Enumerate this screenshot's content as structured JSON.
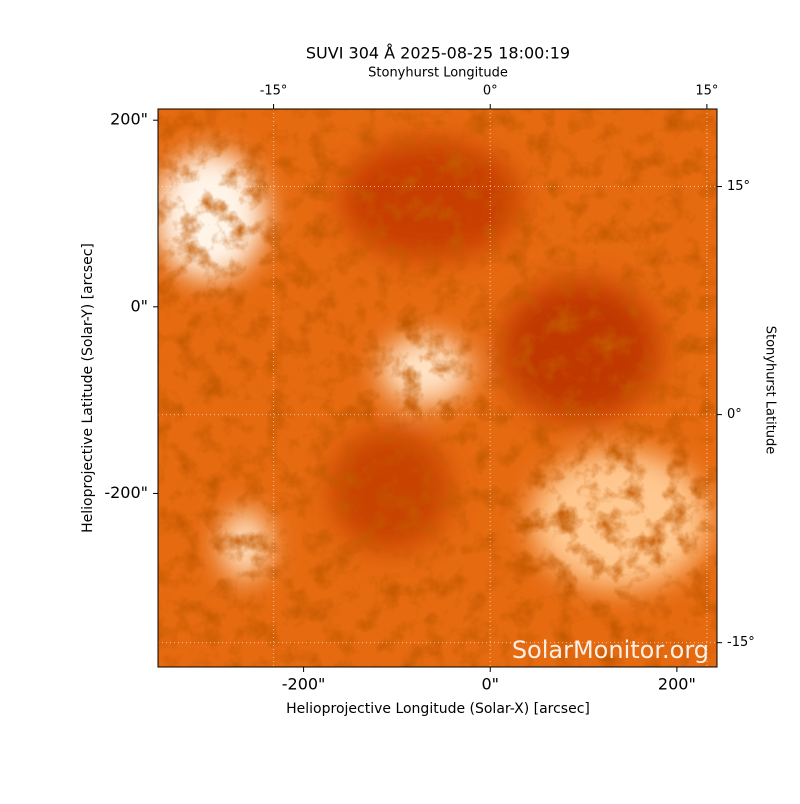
{
  "chart_data": {
    "type": "image",
    "title": "SUVI 304 Å 2025-08-25 18:00:19",
    "xlabel": "Helioprojective Longitude (Solar-X) [arcsec]",
    "ylabel": "Helioprojective Latitude (Solar-Y) [arcsec]",
    "x2label": "Stonyhurst Longitude",
    "y2label": "Stonyhurst Latitude",
    "watermark": "SolarMonitor.org",
    "xlim": [
      -356,
      243
    ],
    "ylim": [
      -386,
      212
    ],
    "xticks": [
      {
        "value": -200,
        "label": "-200\""
      },
      {
        "value": 0,
        "label": "0\""
      },
      {
        "value": 200,
        "label": "200\""
      }
    ],
    "yticks": [
      {
        "value": -200,
        "label": "-200\""
      },
      {
        "value": 0,
        "label": "0\""
      },
      {
        "value": 200,
        "label": "200\""
      }
    ],
    "x2lim": [
      -23,
      15.7
    ],
    "x2ticks": [
      {
        "value": -15,
        "label": "-15°"
      },
      {
        "value": 0,
        "label": "0°"
      },
      {
        "value": 15,
        "label": "15°"
      }
    ],
    "y2lim": [
      -16.6,
      20.1
    ],
    "y2ticks": [
      {
        "value": -15,
        "label": "-15°"
      },
      {
        "value": 0,
        "label": "0°"
      },
      {
        "value": 15,
        "label": "15°"
      }
    ],
    "grid": true
  }
}
